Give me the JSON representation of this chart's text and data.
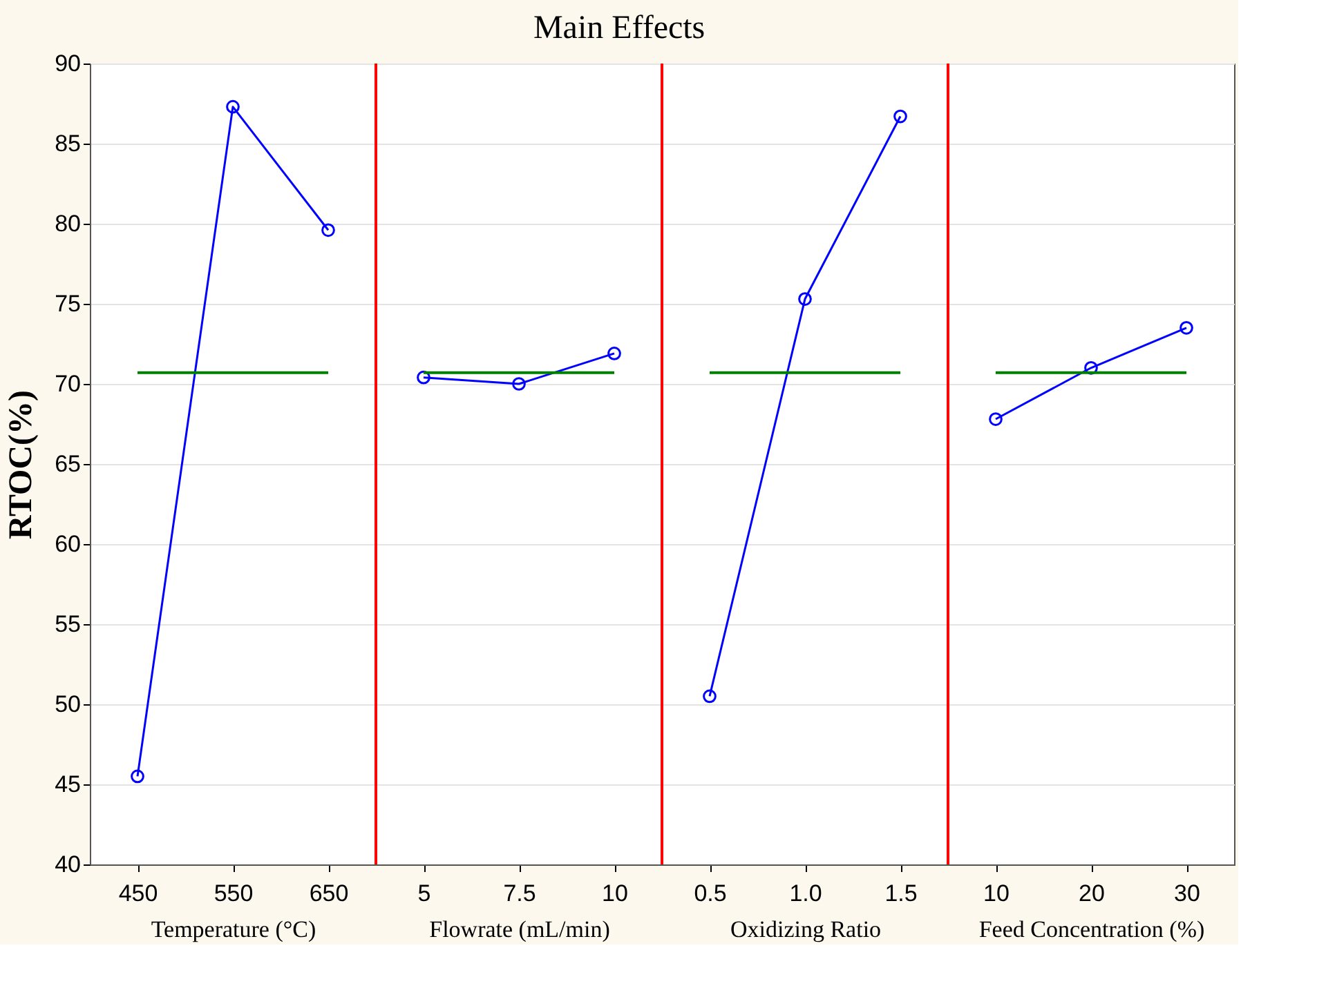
{
  "chart_data": [
    {
      "type": "line",
      "ylabel": "RTOC(%)",
      "xlabel": "Temperature (°C)",
      "categories": [
        "450",
        "550",
        "650"
      ],
      "values": [
        45.5,
        87.3,
        79.6
      ],
      "color": "#0000ff",
      "marker": "circle",
      "ylim": [
        40,
        90
      ],
      "yticks": [
        40,
        45,
        50,
        55,
        60,
        65,
        70,
        75,
        80,
        85,
        90
      ],
      "grid": "y",
      "ref_lines": [
        {
          "axis": "y",
          "value": 70.7,
          "color": "#008000"
        }
      ]
    },
    {
      "type": "line",
      "title": "Main Effects",
      "xlabel": "Flowrate   (mL/min)",
      "categories": [
        "5",
        "7.5",
        "10"
      ],
      "values": [
        70.4,
        70.0,
        71.9
      ],
      "color": "#0000ff",
      "marker": "circle",
      "ylim": [
        40,
        90
      ],
      "yticks": [
        40,
        45,
        50,
        55,
        60,
        65,
        70,
        75,
        80,
        85,
        90
      ],
      "grid": "y",
      "tick_labels": "x",
      "ref_lines": [
        {
          "axis": "y",
          "value": 70.7,
          "color": "#008000"
        }
      ]
    },
    {
      "type": "line",
      "xlabel": "Oxidizing Ratio",
      "categories": [
        "0.5",
        "1.0",
        "1.5"
      ],
      "values": [
        50.5,
        75.3,
        86.7
      ],
      "color": "#0000ff",
      "marker": "circle",
      "ylim": [
        40,
        90
      ],
      "yticks": [
        40,
        45,
        50,
        55,
        60,
        65,
        70,
        75,
        80,
        85,
        90
      ],
      "grid": "y",
      "tick_labels": "x",
      "ref_lines": [
        {
          "axis": "y",
          "value": 70.7,
          "color": "#008000"
        }
      ]
    },
    {
      "type": "line",
      "xlabel": "Feed Concentration (%)",
      "categories": [
        "10",
        "20",
        "30"
      ],
      "values": [
        67.8,
        71.0,
        73.5
      ],
      "color": "#0000ff",
      "marker": "circle",
      "ylim": [
        40,
        90
      ],
      "yticks": [
        40,
        45,
        50,
        55,
        60,
        65,
        70,
        75,
        80,
        85,
        90
      ],
      "grid": "y",
      "tick_labels": "x",
      "ref_lines": [
        {
          "axis": "y",
          "value": 70.7,
          "color": "#008000"
        }
      ]
    }
  ]
}
